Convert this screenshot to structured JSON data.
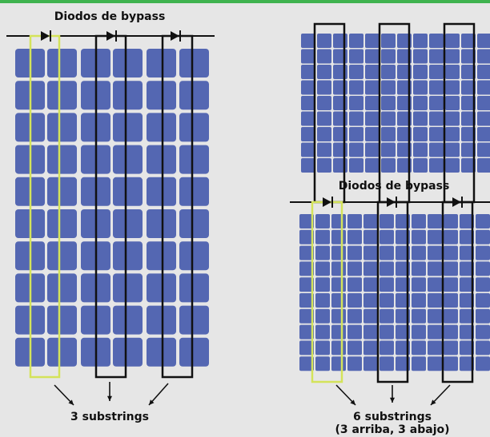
{
  "left": {
    "label": "Diodos de bypass",
    "caption": "3 substrings"
  },
  "right": {
    "label": "Diodos de bypass",
    "caption": "6 substrings",
    "caption_detail": "(3 arriba, 3 abajo)"
  }
}
